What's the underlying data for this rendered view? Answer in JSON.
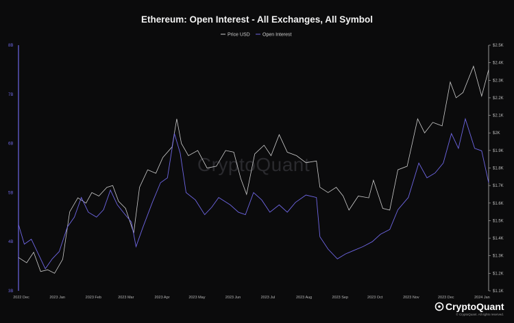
{
  "chart_data": {
    "type": "line",
    "title": "Ethereum: Open Interest - All Exchanges, All Symbol",
    "legend": [
      "Price USD",
      "Open Interest"
    ],
    "legend_placement": "top-center",
    "grid": false,
    "watermark": "CryptoQuant",
    "brand": "CryptoQuant",
    "copyright": "© CryptoQuant. All rights reserved.",
    "colors": {
      "price": "#cfcfcf",
      "open_interest": "#6f67e6",
      "background": "#0b0b0c"
    },
    "y_left": {
      "unit": "B",
      "ylim": [
        3,
        8
      ],
      "ticks": [
        "3B",
        "4B",
        "5B",
        "6B",
        "7B",
        "8B"
      ],
      "tick_values": [
        3,
        4,
        5,
        6,
        7,
        8
      ]
    },
    "y_right": {
      "ylim": [
        1100,
        2500
      ],
      "ticks": [
        "$1.1K",
        "$1.2K",
        "$1.3K",
        "$1.4K",
        "$1.5K",
        "$1.6K",
        "$1.7K",
        "$1.8K",
        "$1.9K",
        "$2K",
        "$2.1K",
        "$2.2K",
        "$2.3K",
        "$2.4K",
        "$2.5K"
      ],
      "tick_values": [
        1100,
        1200,
        1300,
        1400,
        1500,
        1600,
        1700,
        1800,
        1900,
        2000,
        2100,
        2200,
        2300,
        2400,
        2500
      ]
    },
    "x_ticks": [
      "2022 Dec",
      "2023 Jan",
      "2023 Feb",
      "2023 Mar",
      "2023 Apr",
      "2023 May",
      "2023 Jun",
      "2023 Jul",
      "2023 Aug",
      "2023 Sep",
      "2023 Oct",
      "2023 Nov",
      "2023 Dec",
      "2024 Jan"
    ],
    "x_tick_dates": [
      "2022-12-01",
      "2023-01-01",
      "2023-02-01",
      "2023-03-01",
      "2023-04-01",
      "2023-05-01",
      "2023-06-01",
      "2023-07-01",
      "2023-08-01",
      "2023-09-01",
      "2023-10-01",
      "2023-11-01",
      "2023-12-01",
      "2024-01-01"
    ],
    "x_range": [
      "2022-12-01",
      "2024-01-09"
    ],
    "series": [
      {
        "name": "Price USD",
        "axis": "right",
        "points": [
          [
            "2022-12-01",
            1290
          ],
          [
            "2022-12-08",
            1260
          ],
          [
            "2022-12-14",
            1320
          ],
          [
            "2022-12-20",
            1210
          ],
          [
            "2022-12-26",
            1220
          ],
          [
            "2023-01-01",
            1200
          ],
          [
            "2023-01-08",
            1280
          ],
          [
            "2023-01-14",
            1550
          ],
          [
            "2023-01-21",
            1630
          ],
          [
            "2023-01-28",
            1600
          ],
          [
            "2023-02-02",
            1660
          ],
          [
            "2023-02-08",
            1640
          ],
          [
            "2023-02-15",
            1690
          ],
          [
            "2023-02-20",
            1700
          ],
          [
            "2023-02-25",
            1610
          ],
          [
            "2023-03-03",
            1570
          ],
          [
            "2023-03-10",
            1430
          ],
          [
            "2023-03-15",
            1690
          ],
          [
            "2023-03-22",
            1790
          ],
          [
            "2023-03-29",
            1770
          ],
          [
            "2023-04-04",
            1860
          ],
          [
            "2023-04-12",
            1920
          ],
          [
            "2023-04-16",
            2080
          ],
          [
            "2023-04-20",
            1940
          ],
          [
            "2023-04-26",
            1870
          ],
          [
            "2023-05-04",
            1900
          ],
          [
            "2023-05-12",
            1800
          ],
          [
            "2023-05-20",
            1810
          ],
          [
            "2023-05-28",
            1900
          ],
          [
            "2023-06-04",
            1890
          ],
          [
            "2023-06-10",
            1740
          ],
          [
            "2023-06-15",
            1650
          ],
          [
            "2023-06-22",
            1880
          ],
          [
            "2023-06-30",
            1930
          ],
          [
            "2023-07-06",
            1870
          ],
          [
            "2023-07-13",
            1990
          ],
          [
            "2023-07-20",
            1890
          ],
          [
            "2023-07-28",
            1870
          ],
          [
            "2023-08-05",
            1830
          ],
          [
            "2023-08-14",
            1840
          ],
          [
            "2023-08-17",
            1690
          ],
          [
            "2023-08-24",
            1660
          ],
          [
            "2023-08-31",
            1690
          ],
          [
            "2023-09-06",
            1640
          ],
          [
            "2023-09-11",
            1560
          ],
          [
            "2023-09-19",
            1640
          ],
          [
            "2023-09-28",
            1630
          ],
          [
            "2023-10-02",
            1730
          ],
          [
            "2023-10-10",
            1570
          ],
          [
            "2023-10-16",
            1560
          ],
          [
            "2023-10-23",
            1790
          ],
          [
            "2023-10-31",
            1810
          ],
          [
            "2023-11-09",
            2080
          ],
          [
            "2023-11-15",
            2000
          ],
          [
            "2023-11-22",
            2060
          ],
          [
            "2023-11-30",
            2040
          ],
          [
            "2023-12-07",
            2290
          ],
          [
            "2023-12-12",
            2200
          ],
          [
            "2023-12-18",
            2230
          ],
          [
            "2023-12-27",
            2380
          ],
          [
            "2024-01-03",
            2210
          ],
          [
            "2024-01-09",
            2360
          ]
        ]
      },
      {
        "name": "Open Interest",
        "axis": "left",
        "points": [
          [
            "2022-12-01",
            4.35
          ],
          [
            "2022-12-06",
            3.95
          ],
          [
            "2022-12-12",
            4.05
          ],
          [
            "2022-12-18",
            3.75
          ],
          [
            "2022-12-24",
            3.45
          ],
          [
            "2022-12-30",
            3.65
          ],
          [
            "2023-01-05",
            3.8
          ],
          [
            "2023-01-12",
            4.3
          ],
          [
            "2023-01-18",
            4.5
          ],
          [
            "2023-01-24",
            4.9
          ],
          [
            "2023-01-30",
            4.6
          ],
          [
            "2023-02-06",
            4.5
          ],
          [
            "2023-02-12",
            4.65
          ],
          [
            "2023-02-18",
            5.05
          ],
          [
            "2023-02-24",
            4.75
          ],
          [
            "2023-03-01",
            4.6
          ],
          [
            "2023-03-08",
            4.4
          ],
          [
            "2023-03-12",
            3.9
          ],
          [
            "2023-03-18",
            4.3
          ],
          [
            "2023-03-26",
            4.8
          ],
          [
            "2023-04-02",
            5.2
          ],
          [
            "2023-04-08",
            5.3
          ],
          [
            "2023-04-14",
            6.2
          ],
          [
            "2023-04-19",
            5.8
          ],
          [
            "2023-04-24",
            5.0
          ],
          [
            "2023-05-02",
            4.85
          ],
          [
            "2023-05-10",
            4.55
          ],
          [
            "2023-05-16",
            4.7
          ],
          [
            "2023-05-22",
            4.9
          ],
          [
            "2023-06-01",
            4.75
          ],
          [
            "2023-06-08",
            4.6
          ],
          [
            "2023-06-14",
            4.55
          ],
          [
            "2023-06-21",
            5.0
          ],
          [
            "2023-06-28",
            4.85
          ],
          [
            "2023-07-05",
            4.6
          ],
          [
            "2023-07-13",
            4.75
          ],
          [
            "2023-07-20",
            4.6
          ],
          [
            "2023-07-27",
            4.8
          ],
          [
            "2023-08-05",
            4.95
          ],
          [
            "2023-08-14",
            4.9
          ],
          [
            "2023-08-17",
            4.1
          ],
          [
            "2023-08-24",
            3.85
          ],
          [
            "2023-09-01",
            3.65
          ],
          [
            "2023-09-08",
            3.75
          ],
          [
            "2023-09-15",
            3.82
          ],
          [
            "2023-09-23",
            3.9
          ],
          [
            "2023-10-01",
            4.0
          ],
          [
            "2023-10-08",
            4.15
          ],
          [
            "2023-10-16",
            4.25
          ],
          [
            "2023-10-23",
            4.65
          ],
          [
            "2023-11-01",
            4.9
          ],
          [
            "2023-11-10",
            5.6
          ],
          [
            "2023-11-17",
            5.3
          ],
          [
            "2023-11-24",
            5.4
          ],
          [
            "2023-12-01",
            5.6
          ],
          [
            "2023-12-08",
            6.2
          ],
          [
            "2023-12-14",
            5.9
          ],
          [
            "2023-12-20",
            6.5
          ],
          [
            "2023-12-28",
            5.9
          ],
          [
            "2024-01-03",
            5.85
          ],
          [
            "2024-01-09",
            5.2
          ]
        ]
      }
    ]
  }
}
